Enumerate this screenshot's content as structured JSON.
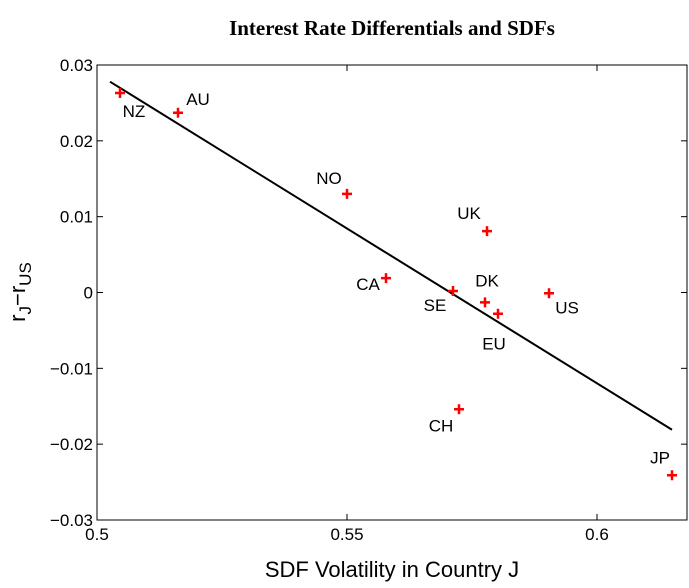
{
  "chart_data": {
    "type": "scatter",
    "title": "Interest Rate Differentials and SDFs",
    "xlabel": "SDF Volatility in Country J",
    "ylabel_parts": [
      "r",
      "J",
      "−r",
      "US"
    ],
    "labels": [
      "NZ",
      "AU",
      "NO",
      "UK",
      "CA",
      "SE",
      "DK",
      "EU",
      "US",
      "CH",
      "JP"
    ],
    "x": [
      0.5046,
      0.5162,
      0.55,
      0.578,
      0.5578,
      0.5712,
      0.5776,
      0.5802,
      0.5904,
      0.5724,
      0.615
    ],
    "y": [
      0.0263,
      0.0237,
      0.013,
      0.0081,
      0.0019,
      0.0002,
      -0.0013,
      -0.0028,
      -0.0001,
      -0.0154,
      -0.0241
    ],
    "color": "#ff0000",
    "trend_line": {
      "x": [
        0.5026,
        0.615
      ],
      "y": [
        0.0278,
        -0.0181
      ],
      "color": "#000000"
    },
    "xlim": [
      0.5,
      0.618
    ],
    "ylim": [
      -0.03,
      0.03
    ],
    "xticks": [
      0.5,
      0.55,
      0.6
    ],
    "yticks": [
      {
        "value": -0.03,
        "label": "−0.03"
      },
      {
        "value": -0.02,
        "label": "−0.02"
      },
      {
        "value": -0.01,
        "label": "−0.01"
      },
      0,
      0.01,
      0.02,
      0.03
    ]
  }
}
